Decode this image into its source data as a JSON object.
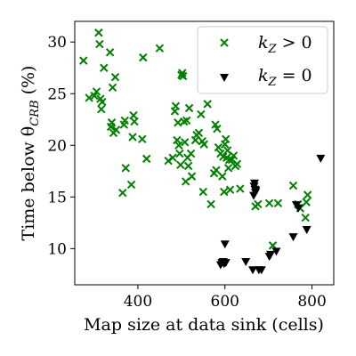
{
  "chart_data": {
    "type": "scatter",
    "xlabel": "Map size at data sink (cells)",
    "ylabel": "Time below θ",
    "ylabel_sub": "CRB",
    "ylabel_unit": " (%)",
    "xlim": [
      255,
      850
    ],
    "ylim": [
      6.5,
      32
    ],
    "xticks": [
      400,
      600,
      800
    ],
    "yticks": [
      10,
      15,
      20,
      25,
      30
    ],
    "grid": false,
    "legend_position": "top-right",
    "series": [
      {
        "name": "k_Z > 0",
        "legend_main": "k",
        "legend_sub": "Z",
        "legend_rel": " > 0",
        "marker": "x",
        "color": "#008000",
        "points": [
          [
            275,
            28.2
          ],
          [
            288,
            24.6
          ],
          [
            300,
            24.8
          ],
          [
            305,
            25.2
          ],
          [
            310,
            30.9
          ],
          [
            312,
            29.8
          ],
          [
            314,
            24.5
          ],
          [
            316,
            23.5
          ],
          [
            318,
            24.2
          ],
          [
            322,
            27.5
          ],
          [
            336,
            29.0
          ],
          [
            338,
            21.8
          ],
          [
            340,
            22.2
          ],
          [
            342,
            25.6
          ],
          [
            344,
            21.2
          ],
          [
            348,
            26.6
          ],
          [
            350,
            21.5
          ],
          [
            365,
            15.4
          ],
          [
            368,
            22.0
          ],
          [
            370,
            22.4
          ],
          [
            372,
            17.8
          ],
          [
            385,
            16.2
          ],
          [
            388,
            20.8
          ],
          [
            390,
            22.9
          ],
          [
            392,
            22.3
          ],
          [
            410,
            20.6
          ],
          [
            412,
            28.5
          ],
          [
            420,
            18.7
          ],
          [
            450,
            29.4
          ],
          [
            470,
            18.5
          ],
          [
            480,
            18.8
          ],
          [
            485,
            23.3
          ],
          [
            487,
            23.8
          ],
          [
            490,
            20.5
          ],
          [
            492,
            22.2
          ],
          [
            494,
            20.0
          ],
          [
            496,
            19.2
          ],
          [
            498,
            18.1
          ],
          [
            500,
            26.8
          ],
          [
            502,
            27.0
          ],
          [
            504,
            26.7
          ],
          [
            506,
            22.3
          ],
          [
            508,
            20.3
          ],
          [
            510,
            16.5
          ],
          [
            512,
            22.4
          ],
          [
            514,
            18.8
          ],
          [
            516,
            18.0
          ],
          [
            518,
            23.6
          ],
          [
            522,
            19.2
          ],
          [
            524,
            17.0
          ],
          [
            532,
            20.5
          ],
          [
            535,
            21.0
          ],
          [
            540,
            21.2
          ],
          [
            545,
            23.0
          ],
          [
            548,
            20.4
          ],
          [
            550,
            15.5
          ],
          [
            552,
            20.1
          ],
          [
            560,
            24.0
          ],
          [
            568,
            14.3
          ],
          [
            575,
            17.3
          ],
          [
            578,
            22.0
          ],
          [
            580,
            17.6
          ],
          [
            582,
            21.6
          ],
          [
            585,
            19.8
          ],
          [
            590,
            19.2
          ],
          [
            594,
            17.0
          ],
          [
            596,
            18.9
          ],
          [
            598,
            15.5
          ],
          [
            600,
            20.1
          ],
          [
            602,
            20.6
          ],
          [
            604,
            18.8
          ],
          [
            606,
            19.5
          ],
          [
            608,
            17.8
          ],
          [
            610,
            18.6
          ],
          [
            612,
            15.7
          ],
          [
            616,
            18.6
          ],
          [
            620,
            19.0
          ],
          [
            624,
            18.0
          ],
          [
            628,
            18.2
          ],
          [
            635,
            15.8
          ],
          [
            670,
            14.1
          ],
          [
            676,
            14.3
          ],
          [
            702,
            14.4
          ],
          [
            710,
            10.3
          ],
          [
            722,
            14.4
          ],
          [
            757,
            16.1
          ],
          [
            768,
            14.3
          ],
          [
            773,
            13.9
          ],
          [
            785,
            13.0
          ],
          [
            787,
            14.5
          ],
          [
            790,
            15.2
          ]
        ]
      },
      {
        "name": "k_Z = 0",
        "legend_main": "k",
        "legend_sub": "Z",
        "legend_rel": " = 0",
        "marker": "triangle-down",
        "color": "#000000",
        "points": [
          [
            590,
            8.4
          ],
          [
            593,
            8.6
          ],
          [
            596,
            8.7
          ],
          [
            598,
            8.5
          ],
          [
            600,
            10.4
          ],
          [
            602,
            8.6
          ],
          [
            648,
            8.7
          ],
          [
            664,
            7.9
          ],
          [
            666,
            15.1
          ],
          [
            667,
            16.0
          ],
          [
            668,
            16.3
          ],
          [
            669,
            15.7
          ],
          [
            670,
            15.4
          ],
          [
            671,
            15.6
          ],
          [
            678,
            7.9
          ],
          [
            684,
            7.9
          ],
          [
            702,
            9.2
          ],
          [
            705,
            9.4
          ],
          [
            718,
            9.7
          ],
          [
            757,
            11.1
          ],
          [
            764,
            14.2
          ],
          [
            769,
            13.9
          ],
          [
            788,
            11.8
          ],
          [
            820,
            18.7
          ]
        ]
      }
    ]
  }
}
